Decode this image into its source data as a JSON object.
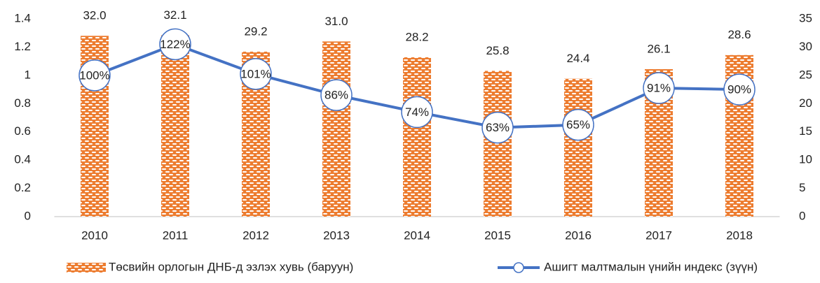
{
  "chart_data": {
    "type": "bar",
    "categories": [
      "2010",
      "2011",
      "2012",
      "2013",
      "2014",
      "2015",
      "2016",
      "2017",
      "2018"
    ],
    "series": [
      {
        "name": "Төсвийн орлогын ДНБ-д эзлэх хувь (баруун)",
        "type": "bar",
        "axis": "y2",
        "color": "#ED7D31",
        "values": [
          32.0,
          32.1,
          29.2,
          31.0,
          28.2,
          25.8,
          24.4,
          26.1,
          28.6
        ],
        "value_labels": [
          "32.0",
          "32.1",
          "29.2",
          "31.0",
          "28.2",
          "25.8",
          "24.4",
          "26.1",
          "28.6"
        ]
      },
      {
        "name": "Ашигт малтмалын үнийн индекс (зүүн)",
        "type": "line",
        "axis": "y",
        "color": "#4472C4",
        "values": [
          1.0,
          1.22,
          1.01,
          0.86,
          0.74,
          0.63,
          0.65,
          0.91,
          0.9
        ],
        "value_labels": [
          "100%",
          "122%",
          "101%",
          "86%",
          "74%",
          "63%",
          "65%",
          "91%",
          "90%"
        ]
      }
    ],
    "ylim": [
      0,
      1.4
    ],
    "yticks": [
      0,
      0.2,
      0.4,
      0.6,
      0.8,
      1,
      1.2,
      1.4
    ],
    "y2lim": [
      0,
      35
    ],
    "y2ticks": [
      0,
      5,
      10,
      15,
      20,
      25,
      30,
      35
    ],
    "grid": false,
    "legend": "bottom"
  }
}
